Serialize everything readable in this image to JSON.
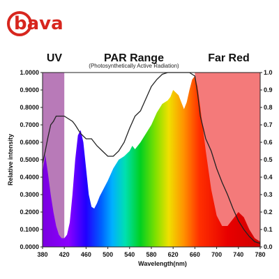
{
  "brand": {
    "logo_text": "bava",
    "logo_color": "#d7261e"
  },
  "chart_data": {
    "type": "area",
    "regions": [
      {
        "label": "UV",
        "x_range": [
          380,
          420
        ],
        "color": "#b87ab8"
      },
      {
        "label": "Far Red",
        "x_range": [
          660,
          780
        ],
        "color": "#f47a7a"
      }
    ],
    "region_headers": {
      "uv": "UV",
      "par": "PAR Range",
      "par_sub": "(Photosynthetically Active Radiation)",
      "far_red": "Far Red"
    },
    "xlabel": "Wavelength(nm)",
    "ylabel": "Relative intensity",
    "xlim": [
      380,
      780
    ],
    "ylim": [
      0,
      1
    ],
    "x_ticks": [
      "380",
      "420",
      "460",
      "500",
      "540",
      "580",
      "620",
      "660",
      "700",
      "740",
      "780"
    ],
    "y_ticks_left": [
      "0.0000",
      "0.1000",
      "0.2000",
      "0.3000",
      "0.4000",
      "0.5000",
      "0.6000",
      "0.7000",
      "0.8000",
      "0.9000",
      "1.0000"
    ],
    "y_ticks_right": [
      "0.0",
      "0.1",
      "0.2",
      "0.3",
      "0.4",
      "0.5",
      "0.6",
      "0.7",
      "0.8",
      "0.9",
      "1.0"
    ],
    "series": [
      {
        "x": [
          380,
          385,
          390,
          395,
          400,
          405,
          410,
          415,
          420,
          425,
          430,
          435,
          440,
          445,
          450,
          455,
          460,
          465,
          470,
          475,
          480,
          485,
          490,
          500,
          510,
          520,
          530,
          540,
          545,
          550,
          560,
          570,
          580,
          590,
          600,
          610,
          615,
          620,
          630,
          640,
          645,
          650,
          655,
          660,
          665,
          670,
          680,
          690,
          700,
          710,
          720,
          730,
          740,
          750,
          760,
          770,
          780
        ],
        "values": [
          0.43,
          0.53,
          0.42,
          0.3,
          0.2,
          0.12,
          0.07,
          0.05,
          0.05,
          0.07,
          0.14,
          0.3,
          0.5,
          0.64,
          0.67,
          0.6,
          0.45,
          0.3,
          0.23,
          0.22,
          0.25,
          0.29,
          0.32,
          0.38,
          0.45,
          0.5,
          0.52,
          0.55,
          0.58,
          0.56,
          0.6,
          0.65,
          0.7,
          0.77,
          0.82,
          0.84,
          0.86,
          0.9,
          0.87,
          0.79,
          0.83,
          0.9,
          0.96,
          0.98,
          0.92,
          0.8,
          0.55,
          0.33,
          0.18,
          0.12,
          0.12,
          0.16,
          0.2,
          0.17,
          0.1,
          0.05,
          0.03
        ]
      },
      {
        "x": [
          380,
          385,
          390,
          395,
          400,
          405,
          410,
          420,
          425,
          430,
          435,
          440,
          450,
          460,
          470,
          480,
          490,
          500,
          510,
          520,
          530,
          540,
          550,
          560,
          570,
          580,
          590,
          600,
          610,
          620,
          630,
          640,
          650,
          660,
          665,
          670,
          680,
          690,
          700,
          710,
          720,
          730,
          740,
          750,
          760,
          770,
          780
        ],
        "values": [
          0.48,
          0.55,
          0.63,
          0.7,
          0.72,
          0.75,
          0.75,
          0.75,
          0.74,
          0.73,
          0.72,
          0.7,
          0.65,
          0.62,
          0.62,
          0.58,
          0.55,
          0.52,
          0.52,
          0.55,
          0.6,
          0.68,
          0.75,
          0.78,
          0.85,
          0.92,
          0.96,
          0.99,
          1.0,
          1.0,
          1.0,
          1.0,
          1.0,
          0.98,
          0.88,
          0.75,
          0.62,
          0.55,
          0.45,
          0.37,
          0.3,
          0.22,
          0.15,
          0.1,
          0.06,
          0.03,
          0.02
        ]
      }
    ],
    "colors": {
      "uv_band": "#b87ab8",
      "far_red_band": "#f47a7a",
      "line": "#222222",
      "spectrum": [
        "#8b00ff",
        "#0000ff",
        "#00a0ff",
        "#00e0a0",
        "#00d000",
        "#b0e000",
        "#ffe000",
        "#ff9000",
        "#ff2000",
        "#e00000"
      ]
    }
  }
}
